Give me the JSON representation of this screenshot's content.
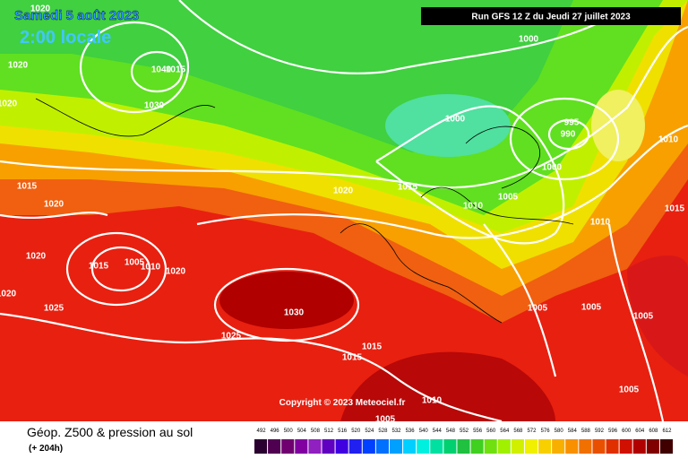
{
  "header": {
    "date": "Samedi 5 août 2023",
    "time": "2:00 locale",
    "run": "Run GFS 12 Z du Jeudi 27 juillet 2023"
  },
  "copyright": "Copyright © 2023 Meteociel.fr",
  "isobar_labels": [
    "1020",
    "1020",
    "1020",
    "1040",
    "1015",
    "1030",
    "1015",
    "1020",
    "1020",
    "1020",
    "1025",
    "1015",
    "1005",
    "1010",
    "1020",
    "1030",
    "1025",
    "1015",
    "1015",
    "1010",
    "1005",
    "1000",
    "1000",
    "995",
    "990",
    "1000",
    "1005",
    "1010",
    "1015",
    "1020",
    "1010",
    "1015",
    "1010",
    "1005",
    "1005",
    "1005",
    "1005"
  ],
  "legend": {
    "title": "Géop. Z500 & pression au sol",
    "subtitle": "(+ 204h)",
    "scale": [
      {
        "label": "492",
        "color": "#2a0030"
      },
      {
        "label": "496",
        "color": "#500050"
      },
      {
        "label": "500",
        "color": "#700070"
      },
      {
        "label": "504",
        "color": "#8000a0"
      },
      {
        "label": "508",
        "color": "#9020c0"
      },
      {
        "label": "512",
        "color": "#6000c0"
      },
      {
        "label": "516",
        "color": "#4000e0"
      },
      {
        "label": "520",
        "color": "#2020f0"
      },
      {
        "label": "524",
        "color": "#0040ff"
      },
      {
        "label": "528",
        "color": "#0070ff"
      },
      {
        "label": "532",
        "color": "#00a0ff"
      },
      {
        "label": "536",
        "color": "#00d0ff"
      },
      {
        "label": "540",
        "color": "#00f0e0"
      },
      {
        "label": "544",
        "color": "#00e0a0"
      },
      {
        "label": "548",
        "color": "#00d070"
      },
      {
        "label": "552",
        "color": "#20c040"
      },
      {
        "label": "556",
        "color": "#40d020"
      },
      {
        "label": "560",
        "color": "#70e010"
      },
      {
        "label": "564",
        "color": "#a0f000"
      },
      {
        "label": "568",
        "color": "#d0f000"
      },
      {
        "label": "572",
        "color": "#f0f000"
      },
      {
        "label": "576",
        "color": "#f8d000"
      },
      {
        "label": "580",
        "color": "#f8b000"
      },
      {
        "label": "584",
        "color": "#f89000"
      },
      {
        "label": "588",
        "color": "#f07000"
      },
      {
        "label": "592",
        "color": "#e85000"
      },
      {
        "label": "596",
        "color": "#e03000"
      },
      {
        "label": "600",
        "color": "#d01000"
      },
      {
        "label": "604",
        "color": "#b00000"
      },
      {
        "label": "608",
        "color": "#800000"
      },
      {
        "label": "612",
        "color": "#400000"
      }
    ]
  }
}
